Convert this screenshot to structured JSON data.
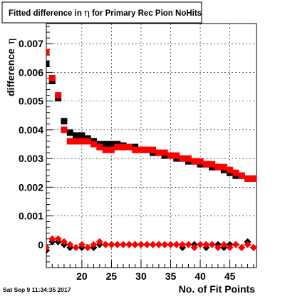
{
  "title_box": {
    "pre": "Fitted difference in ",
    "symbol": "η",
    "post": " for Primary Rec Pion NoHits"
  },
  "timestamp": "Sat Sep  9 11:34:35 2017",
  "colors": {
    "background": "#ffffff",
    "axis": "#000000",
    "grid": "#000000",
    "series_black": "#000000",
    "series_red": "#ff0000"
  },
  "chart_data": {
    "type": "scatter",
    "title": "Fitted difference in η for Primary Rec Pion NoHits",
    "xlabel": "No. of Fit Points",
    "ylabel": "difference",
    "ylabel_symbol": "η",
    "xlim": [
      14,
      49.5
    ],
    "ylim": [
      -0.0008,
      0.0077
    ],
    "grid": true,
    "legend": "none",
    "x_ticks": [
      20,
      25,
      30,
      35,
      40,
      45
    ],
    "x_tick_labels": [
      "20",
      "25",
      "30",
      "35",
      "40",
      "45"
    ],
    "y_ticks": [
      0,
      0.001,
      0.002,
      0.003,
      0.004,
      0.005,
      0.006,
      0.007
    ],
    "y_tick_labels": [
      "0",
      "0.001",
      "0.002",
      "0.003",
      "0.004",
      "0.005",
      "0.006",
      "0.007"
    ],
    "series": [
      {
        "color": "#000000",
        "marker": "square",
        "x": [
          14,
          15,
          16,
          17,
          18,
          19,
          20,
          21,
          22,
          23,
          24,
          25,
          26,
          27,
          28,
          29,
          30,
          31,
          32,
          33,
          34,
          35,
          36,
          37,
          38,
          39,
          40,
          41,
          42,
          43,
          44,
          45,
          46,
          47,
          48,
          49
        ],
        "y": [
          0.0063,
          0.0057,
          0.0051,
          0.0043,
          0.0039,
          0.0038,
          0.0038,
          0.0037,
          0.0036,
          0.0035,
          0.0035,
          0.0035,
          0.0035,
          0.00345,
          0.0034,
          0.0034,
          0.0033,
          0.0033,
          0.0032,
          0.0032,
          0.0031,
          0.0031,
          0.003,
          0.003,
          0.0029,
          0.0029,
          0.0028,
          0.0028,
          0.0027,
          0.0027,
          0.0026,
          0.0025,
          0.0024,
          0.0024,
          0.0023,
          0.0023
        ]
      },
      {
        "color": "#ff0000",
        "marker": "square",
        "x": [
          14,
          15,
          16,
          17,
          18,
          19,
          20,
          21,
          22,
          23,
          24,
          25,
          26,
          27,
          28,
          29,
          30,
          31,
          32,
          33,
          34,
          35,
          36,
          37,
          38,
          39,
          40,
          41,
          42,
          43,
          44,
          45,
          46,
          47,
          48,
          49
        ],
        "y": [
          0.0067,
          0.0058,
          0.0052,
          0.004,
          0.0036,
          0.0036,
          0.0036,
          0.0036,
          0.0035,
          0.0034,
          0.0033,
          0.0033,
          0.0034,
          0.0034,
          0.0034,
          0.0033,
          0.0033,
          0.0033,
          0.0033,
          0.0032,
          0.0032,
          0.0031,
          0.0031,
          0.003,
          0.003,
          0.0029,
          0.0029,
          0.0028,
          0.0028,
          0.0027,
          0.0027,
          0.0026,
          0.0025,
          0.0024,
          0.0023,
          0.0023
        ]
      },
      {
        "color": "#000000",
        "marker": "diamond",
        "x": [
          14,
          15,
          16,
          17,
          18,
          19,
          20,
          21,
          22,
          23,
          24,
          25,
          26,
          27,
          28,
          29,
          30,
          31,
          32,
          33,
          34,
          35,
          36,
          37,
          38,
          39,
          40,
          41,
          42,
          43,
          44,
          45,
          46,
          47,
          48,
          49
        ],
        "y": [
          -0.0002,
          0.0001,
          0.0001,
          0.0,
          -0.0001,
          -0.0001,
          -0.0001,
          -0.0001,
          -0.0001,
          0.0,
          0.0,
          0.0,
          0.0,
          0.0,
          0.0,
          0.0,
          0.0,
          0.0,
          0.0,
          0.0,
          0.0,
          0.0,
          0.0,
          -0.0001,
          0.0,
          0.0,
          0.0,
          -0.0001,
          0.0,
          0.0,
          -0.0001,
          0.0,
          0.0,
          -0.0001,
          0.0001,
          -0.0001
        ]
      },
      {
        "color": "#ff0000",
        "marker": "diamond",
        "x": [
          14,
          15,
          16,
          17,
          18,
          19,
          20,
          21,
          22,
          23,
          24,
          25,
          26,
          27,
          28,
          29,
          30,
          31,
          32,
          33,
          34,
          35,
          36,
          37,
          38,
          39,
          40,
          41,
          42,
          43,
          44,
          45,
          46,
          47,
          48,
          49
        ],
        "y": [
          -0.0001,
          0.0002,
          0.0002,
          0.0001,
          0.0,
          -0.0001,
          0.0,
          -0.0001,
          0.0,
          0.0001,
          0.0,
          0.0,
          0.0,
          0.0,
          0.0,
          0.0,
          0.0,
          0.0,
          0.0,
          0.0,
          0.0,
          0.0,
          0.0,
          0.0,
          0.0,
          -0.0001,
          0.0,
          0.0,
          0.0,
          -0.0001,
          0.0,
          -0.0001,
          0.0,
          -0.0001,
          0.0,
          -0.0001
        ]
      }
    ]
  }
}
